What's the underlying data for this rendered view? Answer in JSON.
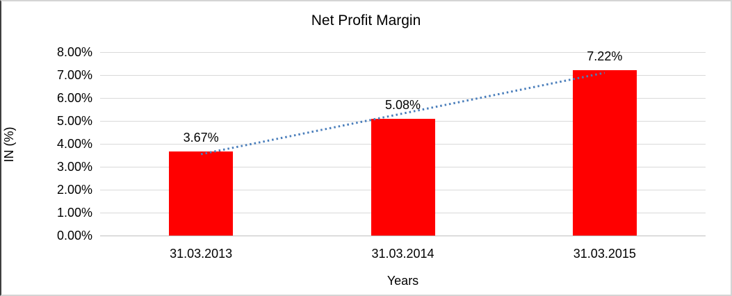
{
  "chart_data": {
    "type": "bar",
    "title": "Net Profit Margin",
    "xlabel": "Years",
    "ylabel": "IN (%)",
    "categories": [
      "31.03.2013",
      "31.03.2014",
      "31.03.2015"
    ],
    "values": [
      3.67,
      5.08,
      7.22
    ],
    "data_labels": [
      "3.67%",
      "5.08%",
      "7.22%"
    ],
    "ylim": [
      0,
      8
    ],
    "ytick_step": 1,
    "ytick_labels": [
      "0.00%",
      "1.00%",
      "2.00%",
      "3.00%",
      "4.00%",
      "5.00%",
      "6.00%",
      "7.00%",
      "8.00%"
    ],
    "grid": true,
    "legend": false,
    "bar_color": "#ff0000",
    "gridline_color": "#d9d9d9",
    "axis_line_color": "#bfbfbf",
    "trendline": {
      "type": "linear",
      "style": "dotted",
      "color": "#4a7ebb"
    }
  }
}
